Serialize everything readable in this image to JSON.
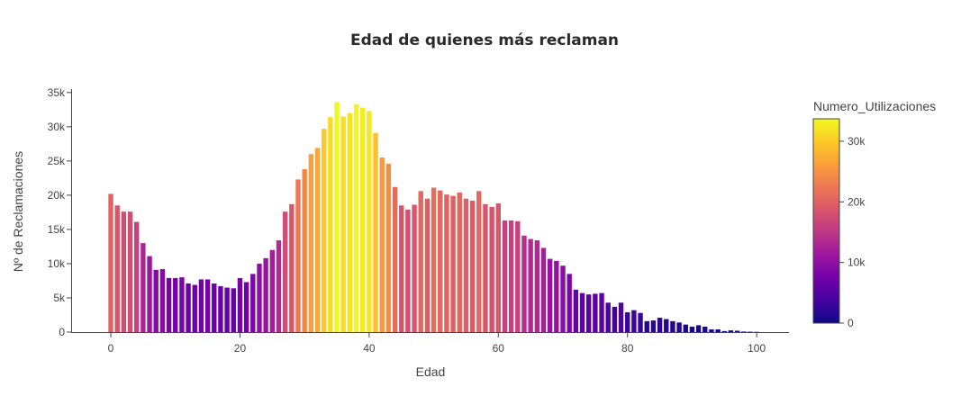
{
  "chart_data": {
    "type": "bar",
    "title": "Edad de quienes más reclaman",
    "xlabel": "Edad",
    "ylabel": "Nº de Reclamaciones",
    "xlim": [
      -6,
      105
    ],
    "ylim": [
      0,
      35500
    ],
    "x_ticks": [
      0,
      20,
      40,
      60,
      80,
      100
    ],
    "x_tick_labels": [
      "0",
      "20",
      "40",
      "60",
      "80",
      "100"
    ],
    "y_ticks": [
      0,
      5000,
      10000,
      15000,
      20000,
      25000,
      30000,
      35000
    ],
    "y_tick_labels": [
      "0",
      "5k",
      "10k",
      "15k",
      "20k",
      "25k",
      "30k",
      "35k"
    ],
    "grid": false,
    "colorbar": {
      "title": "Numero_Utilizaciones",
      "range": [
        0,
        33700
      ],
      "ticks": [
        0,
        10000,
        20000,
        30000
      ],
      "tick_labels": [
        "0",
        "10k",
        "20k",
        "30k"
      ],
      "colorscale": [
        "#0d0887",
        "#46039f",
        "#7201a8",
        "#9c179e",
        "#bd3786",
        "#d8576b",
        "#ed7953",
        "#fb9f3a",
        "#fdca26",
        "#f0f921"
      ]
    },
    "x": [
      0,
      1,
      2,
      3,
      4,
      5,
      6,
      7,
      8,
      9,
      10,
      11,
      12,
      13,
      14,
      15,
      16,
      17,
      18,
      19,
      20,
      21,
      22,
      23,
      24,
      25,
      26,
      27,
      28,
      29,
      30,
      31,
      32,
      33,
      34,
      35,
      36,
      37,
      38,
      39,
      40,
      41,
      42,
      43,
      44,
      45,
      46,
      47,
      48,
      49,
      50,
      51,
      52,
      53,
      54,
      55,
      56,
      57,
      58,
      59,
      60,
      61,
      62,
      63,
      64,
      65,
      66,
      67,
      68,
      69,
      70,
      71,
      72,
      73,
      74,
      75,
      76,
      77,
      78,
      79,
      80,
      81,
      82,
      83,
      84,
      85,
      86,
      87,
      88,
      89,
      90,
      91,
      92,
      93,
      94,
      95,
      96,
      97,
      98,
      99,
      100
    ],
    "values": [
      20200,
      18500,
      17600,
      17600,
      16100,
      13000,
      11100,
      9100,
      9200,
      7900,
      7900,
      8000,
      7100,
      6900,
      7700,
      7700,
      7100,
      6700,
      6500,
      6400,
      7900,
      7300,
      8500,
      10000,
      10800,
      12000,
      13400,
      17600,
      18700,
      22300,
      23800,
      26000,
      26900,
      29700,
      31400,
      33600,
      31500,
      32000,
      33300,
      32800,
      32300,
      29100,
      25500,
      24600,
      21200,
      18500,
      17900,
      18600,
      20600,
      19500,
      21100,
      20700,
      20100,
      19900,
      20400,
      19500,
      19200,
      20600,
      18700,
      18300,
      18800,
      16300,
      16300,
      16200,
      14100,
      13600,
      13400,
      12300,
      10700,
      10400,
      9700,
      8500,
      6200,
      5700,
      5500,
      5600,
      5700,
      4300,
      3700,
      4300,
      2900,
      3200,
      2800,
      1600,
      1700,
      2100,
      1900,
      1600,
      1400,
      1100,
      800,
      1000,
      800,
      400,
      400,
      150,
      250,
      200,
      80,
      60,
      40
    ]
  }
}
